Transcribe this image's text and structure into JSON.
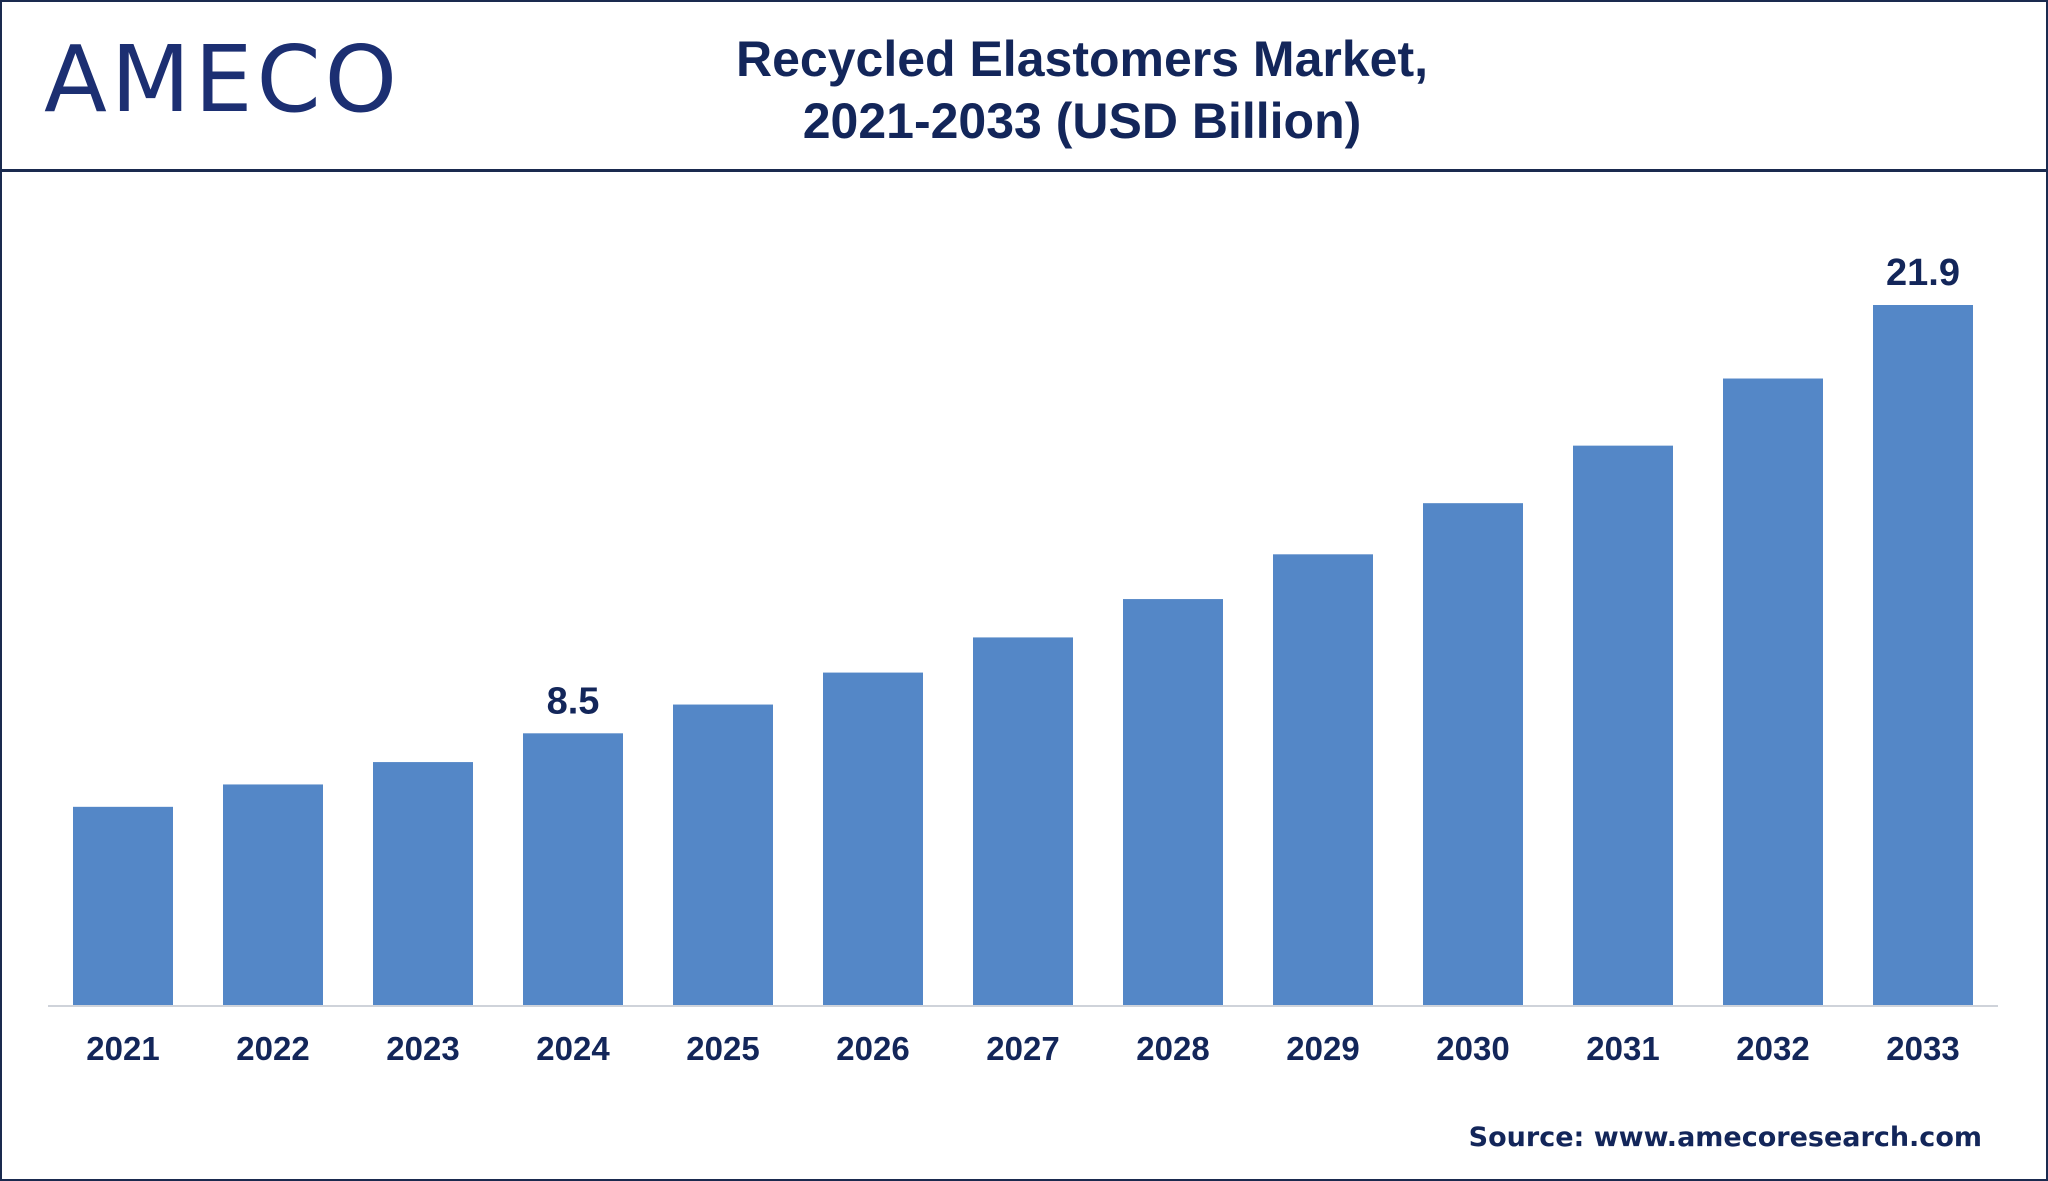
{
  "brand": {
    "logo_text": "AMECO"
  },
  "title": {
    "line1": "Recycled Elastomers Market,",
    "line2": "2021-2033 (USD Billion)"
  },
  "source": "Source: www.amecoresearch.com",
  "colors": {
    "bar": "#5487c7",
    "text": "#13265a",
    "axis": "#cfd3da",
    "border": "#1a2a4f"
  },
  "chart_data": {
    "type": "bar",
    "title": "Recycled Elastomers Market, 2021-2033 (USD Billion)",
    "categories": [
      "2021",
      "2022",
      "2023",
      "2024",
      "2025",
      "2026",
      "2027",
      "2028",
      "2029",
      "2030",
      "2031",
      "2032",
      "2033"
    ],
    "values": [
      6.2,
      6.9,
      7.6,
      8.5,
      9.4,
      10.4,
      11.5,
      12.7,
      14.1,
      15.7,
      17.5,
      19.6,
      21.9
    ],
    "data_labels": {
      "3": "8.5",
      "12": "21.9"
    },
    "ylim": [
      0,
      21.9
    ],
    "grid": false,
    "legend": "none",
    "xlabel": "",
    "ylabel": ""
  }
}
